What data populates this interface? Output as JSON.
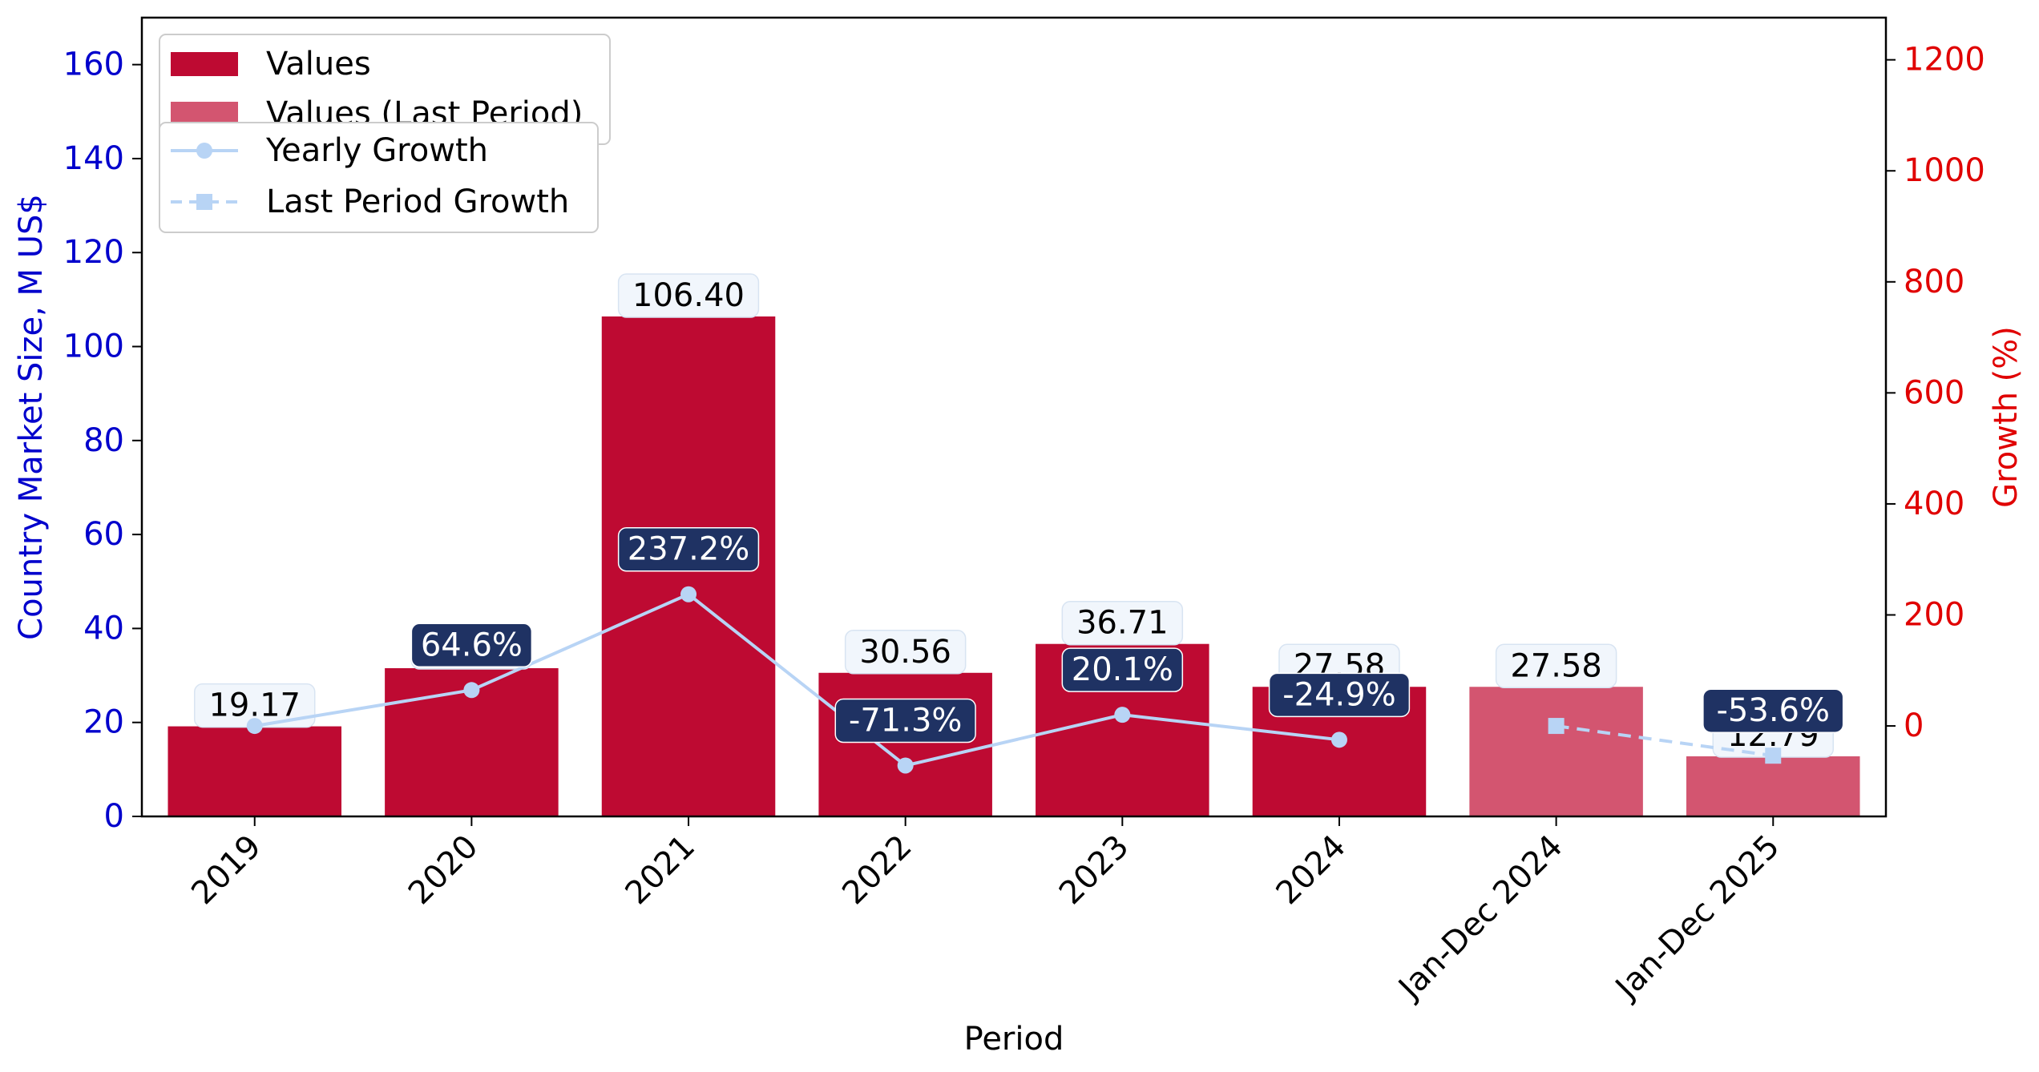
{
  "chart_data": {
    "type": "bar",
    "categories": [
      "2019",
      "2020",
      "2021",
      "2022",
      "2023",
      "2024",
      "Jan-Dec 2024",
      "Jan-Dec 2025"
    ],
    "series": [
      {
        "name": "Values",
        "values": [
          19.17,
          31.55,
          106.4,
          30.56,
          36.71,
          27.58,
          null,
          null
        ],
        "labels": [
          "19.17",
          "31.55",
          "106.40",
          "30.56",
          "36.71",
          "27.58",
          "",
          ""
        ],
        "color": "#BE0A32"
      },
      {
        "name": "Values (Last Period)",
        "values": [
          null,
          null,
          null,
          null,
          null,
          null,
          27.58,
          12.79
        ],
        "labels": [
          "",
          "",
          "",
          "",
          "",
          "",
          "27.58",
          "12.79"
        ],
        "color": "#D35570"
      },
      {
        "name": "Yearly Growth",
        "type": "line",
        "axis": "right",
        "values": [
          0,
          64.6,
          237.2,
          -71.3,
          20.1,
          -24.9,
          null,
          null
        ],
        "labels": [
          "",
          "64.6%",
          "237.2%",
          "-71.3%",
          "20.1%",
          "-24.9%",
          "",
          ""
        ],
        "color": "#B8D4F5",
        "marker": "circle",
        "dash": "solid"
      },
      {
        "name": "Last Period Growth",
        "type": "line",
        "axis": "right",
        "values": [
          null,
          null,
          null,
          null,
          null,
          null,
          0,
          -53.6
        ],
        "labels": [
          "",
          "",
          "",
          "",
          "",
          "",
          "",
          "-53.6%"
        ],
        "color": "#B8D4F5",
        "marker": "square",
        "dash": "dashed"
      }
    ],
    "xlabel": "Period",
    "ylabel": "Country Market Size, M US$",
    "y2label": "Growth (%)",
    "ylim": [
      0,
      170
    ],
    "y2lim": [
      -163,
      1276
    ],
    "yticks": [
      0,
      20,
      40,
      60,
      80,
      100,
      120,
      140,
      160
    ],
    "y2ticks": [
      0,
      200,
      400,
      600,
      800,
      1000,
      1200
    ],
    "grid": false,
    "legend": "top-left",
    "colors": {
      "left_axis": "#0000CC",
      "right_axis": "#E00000",
      "growth_label_bg": "#1F3263",
      "value_label_bg": "#F1F6FC"
    }
  }
}
